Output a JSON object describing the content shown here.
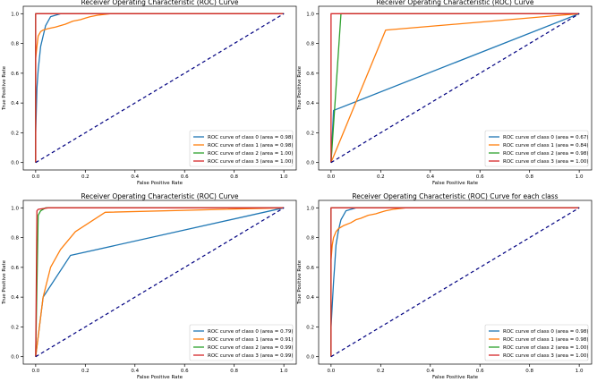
{
  "colors": {
    "class0": "#1f77b4",
    "class1": "#ff7f0e",
    "class2": "#2ca02c",
    "class3": "#d62728",
    "diagonal": "#000080"
  },
  "chart_data": [
    {
      "type": "line",
      "title": "Receiver Operating Characteristic (ROC) Curve",
      "xlabel": "False Positive Rate",
      "ylabel": "True Positive Rate",
      "xlim": [
        -0.05,
        1.05
      ],
      "ylim": [
        -0.05,
        1.05
      ],
      "xticks": [
        "0.0",
        "0.2",
        "0.4",
        "0.6",
        "0.8",
        "1.0"
      ],
      "yticks": [
        "0.0",
        "0.2",
        "0.4",
        "0.6",
        "0.8",
        "1.0"
      ],
      "legend_position": "lower-right",
      "series": [
        {
          "name": "ROC curve of class 0 (area = 0.98)",
          "color_key": "class0",
          "x": [
            0,
            0,
            0.005,
            0.01,
            0.015,
            0.02,
            0.03,
            0.04,
            0.05,
            0.06,
            0.08,
            0.1,
            0.12,
            0.15,
            1.0
          ],
          "y": [
            0,
            0.2,
            0.5,
            0.62,
            0.7,
            0.78,
            0.85,
            0.92,
            0.95,
            0.98,
            0.99,
            1.0,
            1.0,
            1.0,
            1.0
          ]
        },
        {
          "name": "ROC curve of class 1 (area = 0.98)",
          "color_key": "class1",
          "x": [
            0,
            0,
            0.005,
            0.01,
            0.02,
            0.03,
            0.05,
            0.08,
            0.1,
            0.12,
            0.15,
            0.18,
            0.2,
            0.22,
            0.25,
            0.3,
            1.0
          ],
          "y": [
            0,
            0.7,
            0.78,
            0.85,
            0.88,
            0.89,
            0.9,
            0.91,
            0.92,
            0.93,
            0.95,
            0.96,
            0.97,
            0.98,
            0.99,
            1.0,
            1.0
          ]
        },
        {
          "name": "ROC curve of class 2 (area = 1.00)",
          "color_key": "class2",
          "x": [
            0,
            0,
            1.0
          ],
          "y": [
            0,
            1.0,
            1.0
          ]
        },
        {
          "name": "ROC curve of class 3 (area = 1.00)",
          "color_key": "class3",
          "x": [
            0,
            0,
            1.0
          ],
          "y": [
            0,
            1.0,
            1.0
          ]
        }
      ]
    },
    {
      "type": "line",
      "title": "Receiver Operating Characteristic (ROC) Curve",
      "xlabel": "False Positive Rate",
      "ylabel": "True Positive Rate",
      "xlim": [
        -0.05,
        1.05
      ],
      "ylim": [
        -0.05,
        1.05
      ],
      "xticks": [
        "0.0",
        "0.2",
        "0.4",
        "0.6",
        "0.8",
        "1.0"
      ],
      "yticks": [
        "0.0",
        "0.2",
        "0.4",
        "0.6",
        "0.8",
        "1.0"
      ],
      "legend_position": "lower-right",
      "series": [
        {
          "name": "ROC curve of class 0 (area = 0.67)",
          "color_key": "class0",
          "x": [
            0,
            0.01,
            1.0
          ],
          "y": [
            0,
            0.35,
            1.0
          ]
        },
        {
          "name": "ROC curve of class 1 (area = 0.84)",
          "color_key": "class1",
          "x": [
            0,
            0.22,
            1.0
          ],
          "y": [
            0,
            0.89,
            1.0
          ]
        },
        {
          "name": "ROC curve of class 2 (area = 0.98)",
          "color_key": "class2",
          "x": [
            0,
            0.04,
            1.0
          ],
          "y": [
            0,
            1.0,
            1.0
          ]
        },
        {
          "name": "ROC curve of class 3 (area = 1.00)",
          "color_key": "class3",
          "x": [
            0,
            0,
            1.0
          ],
          "y": [
            0,
            1.0,
            1.0
          ]
        }
      ]
    },
    {
      "type": "line",
      "title": "Receiver Operating Characteristic (ROC) Curve",
      "xlabel": "False Positive Rate",
      "ylabel": "True Positive Rate",
      "xlim": [
        -0.05,
        1.05
      ],
      "ylim": [
        -0.05,
        1.05
      ],
      "xticks": [
        "0.0",
        "0.2",
        "0.4",
        "0.6",
        "0.8",
        "1.0"
      ],
      "yticks": [
        "0.0",
        "0.2",
        "0.4",
        "0.6",
        "0.8",
        "1.0"
      ],
      "legend_position": "lower-right",
      "series": [
        {
          "name": "ROC curve of class 0 (area = 0.79)",
          "color_key": "class0",
          "x": [
            0,
            0.03,
            0.14,
            1.0
          ],
          "y": [
            0,
            0.4,
            0.68,
            1.0
          ]
        },
        {
          "name": "ROC curve of class 1 (area = 0.91)",
          "color_key": "class1",
          "x": [
            0,
            0.03,
            0.06,
            0.1,
            0.16,
            0.28,
            1.0
          ],
          "y": [
            0,
            0.4,
            0.6,
            0.72,
            0.84,
            0.97,
            1.0
          ]
        },
        {
          "name": "ROC curve of class 2 (area = 0.99)",
          "color_key": "class2",
          "x": [
            0,
            0.01,
            0.02,
            0.04,
            1.0
          ],
          "y": [
            0,
            0.95,
            0.98,
            1.0,
            1.0
          ]
        },
        {
          "name": "ROC curve of class 3 (area = 0.99)",
          "color_key": "class3",
          "x": [
            0,
            0.005,
            0.01,
            0.05,
            1.0
          ],
          "y": [
            0,
            0.98,
            0.99,
            1.0,
            1.0
          ]
        }
      ]
    },
    {
      "type": "line",
      "title": "Receiver Operating Characteristic (ROC) Curve for each class",
      "xlabel": "False Positive Rate",
      "ylabel": "True Positive Rate",
      "xlim": [
        -0.05,
        1.05
      ],
      "ylim": [
        -0.05,
        1.05
      ],
      "xticks": [
        "0.0",
        "0.2",
        "0.4",
        "0.6",
        "0.8",
        "1.0"
      ],
      "yticks": [
        "0.0",
        "0.2",
        "0.4",
        "0.6",
        "0.8",
        "1.0"
      ],
      "legend_position": "lower-right",
      "series": [
        {
          "name": "ROC curve of class 0 (area = 0.98)",
          "color_key": "class0",
          "x": [
            0,
            0,
            0.005,
            0.01,
            0.015,
            0.02,
            0.03,
            0.04,
            0.05,
            0.06,
            0.08,
            0.1,
            0.12,
            0.15,
            1.0
          ],
          "y": [
            0,
            0.2,
            0.35,
            0.5,
            0.62,
            0.75,
            0.85,
            0.92,
            0.95,
            0.98,
            0.99,
            1.0,
            1.0,
            1.0,
            1.0
          ]
        },
        {
          "name": "ROC curve of class 1 (area = 0.98)",
          "color_key": "class1",
          "x": [
            0,
            0,
            0.005,
            0.01,
            0.02,
            0.03,
            0.05,
            0.08,
            0.1,
            0.12,
            0.15,
            0.18,
            0.2,
            0.22,
            0.25,
            0.3,
            1.0
          ],
          "y": [
            0,
            0.65,
            0.75,
            0.8,
            0.84,
            0.86,
            0.88,
            0.9,
            0.92,
            0.93,
            0.95,
            0.96,
            0.97,
            0.98,
            0.99,
            1.0,
            1.0
          ]
        },
        {
          "name": "ROC curve of class 2 (area = 1.00)",
          "color_key": "class2",
          "x": [
            0,
            0,
            1.0
          ],
          "y": [
            0,
            1.0,
            1.0
          ]
        },
        {
          "name": "ROC curve of class 3 (area = 1.00)",
          "color_key": "class3",
          "x": [
            0,
            0,
            1.0
          ],
          "y": [
            0,
            1.0,
            1.0
          ]
        }
      ]
    }
  ]
}
